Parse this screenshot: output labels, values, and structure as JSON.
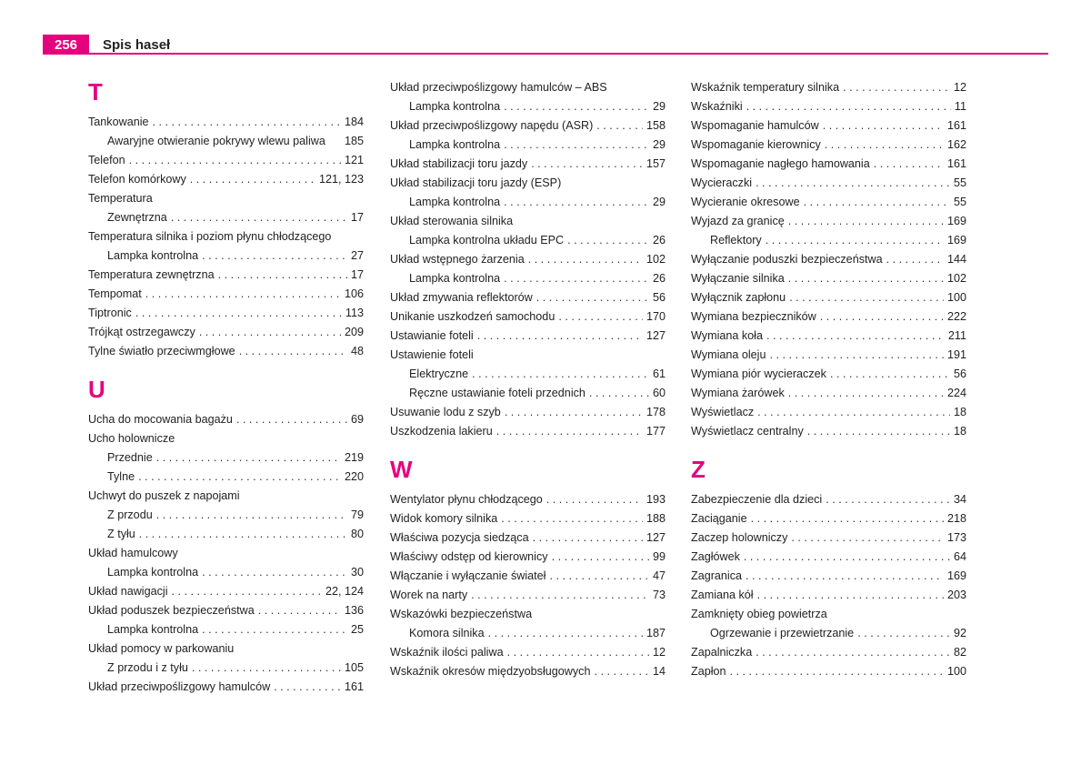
{
  "header": {
    "page_number": "256",
    "title": "Spis haseł",
    "accent_color": "#e5007e"
  },
  "columns": [
    [
      {
        "type": "heading",
        "text": "T"
      },
      {
        "label": "Tankowanie",
        "page": "184"
      },
      {
        "label": "Awaryjne otwieranie pokrywy wlewu paliwa",
        "page": "185",
        "indent": true,
        "nodots": true
      },
      {
        "label": "Telefon",
        "page": "121"
      },
      {
        "label": "Telefon komórkowy",
        "page": "121, 123"
      },
      {
        "label": "Temperatura",
        "page": ""
      },
      {
        "label": "Zewnętrzna",
        "page": "17",
        "indent": true
      },
      {
        "label": "Temperatura silnika i poziom płynu chłodzącego",
        "page": ""
      },
      {
        "label": "Lampka kontrolna",
        "page": "27",
        "indent": true
      },
      {
        "label": "Temperatura zewnętrzna",
        "page": "17"
      },
      {
        "label": "Tempomat",
        "page": "106"
      },
      {
        "label": "Tiptronic",
        "page": "113"
      },
      {
        "label": "Trójkąt ostrzegawczy",
        "page": "209"
      },
      {
        "label": "Tylne światło przeciwmgłowe",
        "page": "48"
      },
      {
        "type": "heading",
        "text": "U"
      },
      {
        "label": "Ucha do mocowania bagażu",
        "page": "69"
      },
      {
        "label": "Ucho holownicze",
        "page": ""
      },
      {
        "label": "Przednie",
        "page": "219",
        "indent": true
      },
      {
        "label": "Tylne",
        "page": "220",
        "indent": true
      },
      {
        "label": "Uchwyt do puszek z napojami",
        "page": ""
      },
      {
        "label": "Z przodu",
        "page": "79",
        "indent": true
      },
      {
        "label": "Z tyłu",
        "page": "80",
        "indent": true
      },
      {
        "label": "Układ hamulcowy",
        "page": ""
      },
      {
        "label": "Lampka kontrolna",
        "page": "30",
        "indent": true
      },
      {
        "label": "Układ nawigacji",
        "page": "22, 124"
      },
      {
        "label": "Układ poduszek bezpieczeństwa",
        "page": "136"
      },
      {
        "label": "Lampka kontrolna",
        "page": "25",
        "indent": true
      },
      {
        "label": "Układ pomocy w parkowaniu",
        "page": ""
      },
      {
        "label": "Z przodu i z tyłu",
        "page": "105",
        "indent": true
      },
      {
        "label": "Układ przeciwpoślizgowy hamulców",
        "page": "161"
      }
    ],
    [
      {
        "label": "Układ przeciwpoślizgowy hamulców – ABS",
        "page": ""
      },
      {
        "label": "Lampka kontrolna",
        "page": "29",
        "indent": true
      },
      {
        "label": "Układ przeciwpoślizgowy napędu (ASR)",
        "page": "158"
      },
      {
        "label": "Lampka kontrolna",
        "page": "29",
        "indent": true
      },
      {
        "label": "Układ stabilizacji toru jazdy",
        "page": "157"
      },
      {
        "label": "Układ stabilizacji toru jazdy (ESP)",
        "page": ""
      },
      {
        "label": "Lampka kontrolna",
        "page": "29",
        "indent": true
      },
      {
        "label": "Układ sterowania silnika",
        "page": ""
      },
      {
        "label": "Lampka kontrolna układu EPC",
        "page": "26",
        "indent": true
      },
      {
        "label": "Układ wstępnego żarzenia",
        "page": "102"
      },
      {
        "label": "Lampka kontrolna",
        "page": "26",
        "indent": true
      },
      {
        "label": "Układ zmywania reflektorów",
        "page": "56"
      },
      {
        "label": "Unikanie uszkodzeń samochodu",
        "page": "170"
      },
      {
        "label": "Ustawianie foteli",
        "page": "127"
      },
      {
        "label": "Ustawienie foteli",
        "page": ""
      },
      {
        "label": "Elektryczne",
        "page": "61",
        "indent": true
      },
      {
        "label": "Ręczne ustawianie foteli przednich",
        "page": "60",
        "indent": true
      },
      {
        "label": "Usuwanie lodu z szyb",
        "page": "178"
      },
      {
        "label": "Uszkodzenia lakieru",
        "page": "177"
      },
      {
        "type": "heading",
        "text": "W"
      },
      {
        "label": "Wentylator płynu chłodzącego",
        "page": "193"
      },
      {
        "label": "Widok komory silnika",
        "page": "188"
      },
      {
        "label": "Właściwa pozycja siedząca",
        "page": "127"
      },
      {
        "label": "Właściwy odstęp od kierownicy",
        "page": "99"
      },
      {
        "label": "Włączanie i wyłączanie świateł",
        "page": "47"
      },
      {
        "label": "Worek na narty",
        "page": "73"
      },
      {
        "label": "Wskazówki bezpieczeństwa",
        "page": ""
      },
      {
        "label": "Komora silnika",
        "page": "187",
        "indent": true
      },
      {
        "label": "Wskaźnik ilości paliwa",
        "page": "12"
      },
      {
        "label": "Wskaźnik okresów międzyobsługowych",
        "page": "14"
      }
    ],
    [
      {
        "label": "Wskaźnik temperatury silnika",
        "page": "12"
      },
      {
        "label": "Wskaźniki",
        "page": "11"
      },
      {
        "label": "Wspomaganie hamulców",
        "page": "161"
      },
      {
        "label": "Wspomaganie kierownicy",
        "page": "162"
      },
      {
        "label": "Wspomaganie nagłego hamowania",
        "page": "161"
      },
      {
        "label": "Wycieraczki",
        "page": "55"
      },
      {
        "label": "Wycieranie okresowe",
        "page": "55"
      },
      {
        "label": "Wyjazd za granicę",
        "page": "169"
      },
      {
        "label": "Reflektory",
        "page": "169",
        "indent": true
      },
      {
        "label": "Wyłączanie poduszki bezpieczeństwa",
        "page": "144"
      },
      {
        "label": "Wyłączanie silnika",
        "page": "102"
      },
      {
        "label": "Wyłącznik zapłonu",
        "page": "100"
      },
      {
        "label": "Wymiana bezpieczników",
        "page": "222"
      },
      {
        "label": "Wymiana koła",
        "page": "211"
      },
      {
        "label": "Wymiana oleju",
        "page": "191"
      },
      {
        "label": "Wymiana piór wycieraczek",
        "page": "56"
      },
      {
        "label": "Wymiana żarówek",
        "page": "224"
      },
      {
        "label": "Wyświetlacz",
        "page": "18"
      },
      {
        "label": "Wyświetlacz centralny",
        "page": "18"
      },
      {
        "type": "heading",
        "text": "Z"
      },
      {
        "label": "Zabezpieczenie dla dzieci",
        "page": "34"
      },
      {
        "label": "Zaciąganie",
        "page": "218"
      },
      {
        "label": "Zaczep holowniczy",
        "page": "173"
      },
      {
        "label": "Zagłówek",
        "page": "64"
      },
      {
        "label": "Zagranica",
        "page": "169"
      },
      {
        "label": "Zamiana kół",
        "page": "203"
      },
      {
        "label": "Zamknięty obieg powietrza",
        "page": ""
      },
      {
        "label": "Ogrzewanie i przewietrzanie",
        "page": "92",
        "indent": true
      },
      {
        "label": "Zapalniczka",
        "page": "82"
      },
      {
        "label": "Zapłon",
        "page": "100"
      }
    ]
  ]
}
